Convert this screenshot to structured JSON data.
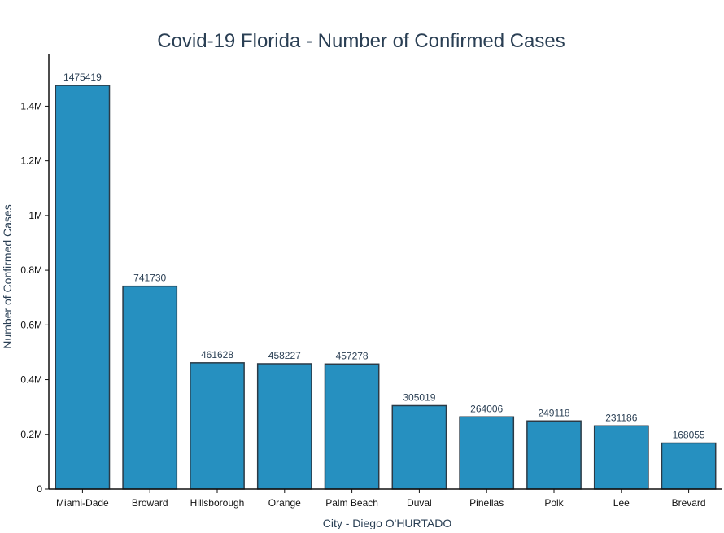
{
  "chart_data": {
    "type": "bar",
    "title": "Covid-19 Florida - Number of Confirmed Cases",
    "xlabel": "City - Diego O'HURTADO",
    "ylabel": "Number of Confirmed Cases",
    "categories": [
      "Miami-Dade",
      "Broward",
      "Hillsborough",
      "Orange",
      "Palm Beach",
      "Duval",
      "Pinellas",
      "Polk",
      "Lee",
      "Brevard"
    ],
    "values": [
      1475419,
      741730,
      461628,
      458227,
      457278,
      305019,
      264006,
      249118,
      231186,
      168055
    ],
    "data_labels": [
      "1475419",
      "741730",
      "461628",
      "458227",
      "457278",
      "305019",
      "264006",
      "249118",
      "231186",
      "168055"
    ],
    "ylim": [
      0,
      1550000
    ],
    "yticks": [
      0,
      200000,
      400000,
      600000,
      800000,
      1000000,
      1200000,
      1400000
    ],
    "ytick_labels": [
      "0",
      "0.2M",
      "0.4M",
      "0.6M",
      "0.8M",
      "1M",
      "1.2M",
      "1.4M"
    ],
    "grid": false,
    "legend": "none",
    "colors": {
      "bar_fill": "#2690c0",
      "bar_stroke": "#2b3a46",
      "axis": "#111111",
      "text": "#2a3f54",
      "title": "#2a3f54"
    }
  }
}
